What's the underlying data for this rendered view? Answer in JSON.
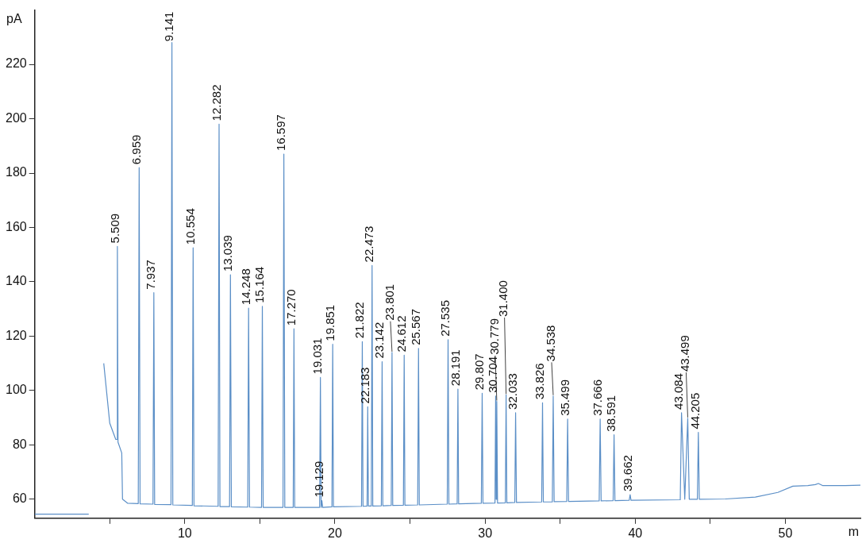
{
  "chart_data": {
    "type": "line",
    "xlabel": "m",
    "ylabel": "pA",
    "xlim": [
      0,
      55
    ],
    "xticks": [
      {
        "value": 5,
        "label": null
      },
      10,
      {
        "value": 15,
        "label": null
      },
      20,
      {
        "value": 25,
        "label": null
      },
      30,
      {
        "value": 35,
        "label": null
      },
      40,
      {
        "value": 45,
        "label": null
      },
      50
    ],
    "ylim": [
      53,
      240
    ],
    "yticks": [
      60,
      80,
      100,
      120,
      140,
      160,
      180,
      200,
      220
    ],
    "grid": false,
    "legend": false,
    "marker": "none",
    "line_style": "solid",
    "series": [
      {
        "color": "#5b8fc7",
        "x": [
          0,
          3.6,
          3.65,
          4.4,
          4.6,
          5.0,
          5.4,
          5.47,
          5.509,
          5.55,
          5.8,
          5.85,
          6.2,
          6.9,
          6.959,
          7.02,
          7.88,
          7.937,
          7.99,
          9.08,
          9.141,
          9.2,
          10.5,
          10.554,
          10.61,
          12.22,
          12.282,
          12.34,
          12.98,
          13.039,
          13.1,
          14.19,
          14.248,
          14.31,
          15.11,
          15.164,
          15.22,
          16.54,
          16.597,
          16.66,
          17.22,
          17.27,
          17.32,
          18.98,
          19.031,
          19.08,
          19.129,
          19.18,
          19.8,
          19.851,
          19.9,
          21.77,
          21.822,
          21.87,
          22.14,
          22.183,
          22.23,
          22.42,
          22.473,
          22.52,
          23.09,
          23.142,
          23.19,
          23.75,
          23.801,
          23.85,
          24.56,
          24.612,
          24.66,
          25.51,
          25.567,
          25.62,
          27.48,
          27.535,
          27.59,
          28.14,
          28.191,
          28.24,
          29.75,
          29.807,
          29.86,
          30.66,
          30.704,
          30.74,
          30.779,
          30.83,
          31.35,
          31.4,
          31.45,
          31.98,
          32.033,
          32.09,
          33.77,
          33.826,
          33.88,
          34.48,
          34.538,
          34.6,
          35.44,
          35.499,
          35.56,
          37.6,
          37.666,
          37.73,
          38.53,
          38.591,
          38.65,
          39.6,
          39.662,
          39.72,
          43.0,
          43.084,
          43.3,
          43.499,
          43.6,
          44.14,
          44.205,
          44.27,
          46,
          48,
          49.5,
          50.5,
          51.5,
          52,
          52.2,
          52.5,
          54,
          55
        ],
        "values": [
          54.5,
          54.5,
          null,
          null,
          110,
          88,
          82,
          82,
          153,
          81,
          77,
          60,
          58.5,
          58.4,
          182,
          58.3,
          58.2,
          136,
          58.1,
          58,
          228,
          57.9,
          57.7,
          152.5,
          57.6,
          57.4,
          198,
          57.3,
          57.3,
          142.6,
          57.2,
          57.1,
          130.3,
          57.1,
          57,
          131,
          57,
          57,
          187,
          57,
          57,
          122.7,
          57,
          57,
          104.8,
          57,
          59.5,
          57,
          57.2,
          117,
          57.2,
          57.4,
          118,
          57.4,
          57.5,
          94,
          57.5,
          57.5,
          146,
          57.5,
          57.6,
          110.6,
          57.6,
          57.7,
          114,
          57.7,
          57.8,
          113,
          57.8,
          57.9,
          115.5,
          57.9,
          58.2,
          118.7,
          58.2,
          58.3,
          100.5,
          58.3,
          58.5,
          99,
          58.5,
          58.6,
          98,
          60,
          96,
          58.6,
          58.7,
          98.4,
          58.7,
          58.8,
          91.8,
          58.8,
          59,
          95.5,
          59,
          59,
          98,
          59.1,
          59.2,
          89.5,
          59.2,
          59.4,
          89.5,
          59.4,
          59.5,
          83.7,
          59.5,
          59.6,
          61.7,
          59.6,
          59.8,
          91.8,
          60,
          89.8,
          60,
          60,
          84.6,
          60,
          60.1,
          60.8,
          62.5,
          64.8,
          65,
          65.4,
          65.8,
          65,
          65,
          65.2
        ]
      }
    ],
    "annotations": [
      {
        "text": "5.509",
        "x": 5.509,
        "y": 153
      },
      {
        "text": "6.959",
        "x": 6.959,
        "y": 182
      },
      {
        "text": "7.937",
        "x": 7.937,
        "y": 136
      },
      {
        "text": "9.141",
        "x": 9.141,
        "y": 228
      },
      {
        "text": "10.554",
        "x": 10.554,
        "y": 152.5
      },
      {
        "text": "12.282",
        "x": 12.282,
        "y": 198
      },
      {
        "text": "13.039",
        "x": 13.039,
        "y": 142.6
      },
      {
        "text": "14.248",
        "x": 14.248,
        "y": 130.3
      },
      {
        "text": "15.164",
        "x": 15.164,
        "y": 131
      },
      {
        "text": "16.597",
        "x": 16.597,
        "y": 187
      },
      {
        "text": "17.270",
        "x": 17.27,
        "y": 122.7
      },
      {
        "text": "19.031",
        "x": 19.031,
        "y": 104.8
      },
      {
        "text": "19.129",
        "x": 19.129,
        "y": 59.5
      },
      {
        "text": "19.851",
        "x": 19.851,
        "y": 117
      },
      {
        "text": "21.822",
        "x": 21.822,
        "y": 118
      },
      {
        "text": "22.183",
        "x": 22.183,
        "y": 94
      },
      {
        "text": "22.473",
        "x": 22.473,
        "y": 146
      },
      {
        "text": "23.142",
        "x": 23.142,
        "y": 110.6
      },
      {
        "text": "23.801",
        "x": 23.801,
        "y": 114
      },
      {
        "text": "24.612",
        "x": 24.612,
        "y": 113
      },
      {
        "text": "25.567",
        "x": 25.567,
        "y": 115.5
      },
      {
        "text": "27.535",
        "x": 27.535,
        "y": 118.7
      },
      {
        "text": "28.191",
        "x": 28.191,
        "y": 100.5
      },
      {
        "text": "29.807",
        "x": 29.807,
        "y": 99
      },
      {
        "text": "30.704",
        "x": 30.704,
        "y": 98
      },
      {
        "text": "30.779",
        "x": 30.779,
        "y": 96
      },
      {
        "text": "31.400",
        "x": 31.4,
        "y": 98.4
      },
      {
        "text": "32.033",
        "x": 32.033,
        "y": 91.8
      },
      {
        "text": "33.826",
        "x": 33.826,
        "y": 95.5
      },
      {
        "text": "34.538",
        "x": 34.538,
        "y": 98
      },
      {
        "text": "35.499",
        "x": 35.499,
        "y": 89.5
      },
      {
        "text": "37.666",
        "x": 37.666,
        "y": 89.5
      },
      {
        "text": "38.591",
        "x": 38.591,
        "y": 83.7
      },
      {
        "text": "39.662",
        "x": 39.662,
        "y": 61.7
      },
      {
        "text": "43.084",
        "x": 43.084,
        "y": 91.8
      },
      {
        "text": "43.499",
        "x": 43.499,
        "y": 89.8
      },
      {
        "text": "44.205",
        "x": 44.205,
        "y": 84.6
      }
    ]
  }
}
